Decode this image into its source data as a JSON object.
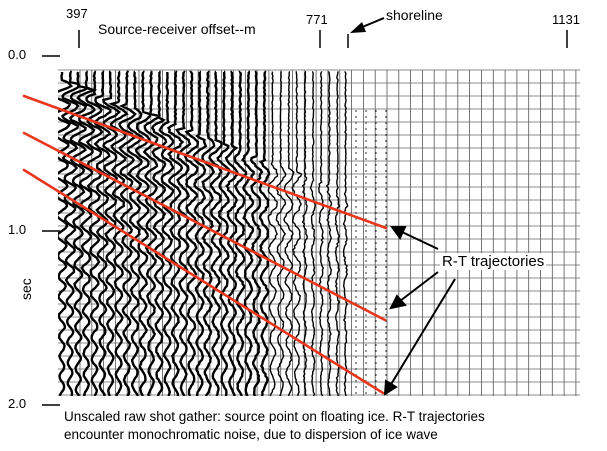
{
  "figure": {
    "x_axis_label": "Source-receiver offset--m",
    "y_axis_label": "sec",
    "x_ticks": [
      "397",
      "771",
      "1131"
    ],
    "y_ticks": [
      "0.0",
      "1.0",
      "2.0"
    ],
    "shoreline_label": "shoreline",
    "annotation_label": "R-T trajectories",
    "caption_line1": "Unscaled raw shot gather: source point on floating ice. R-T trajectories",
    "caption_line2": "encounter monochromatic noise, due to dispersion of ice wave",
    "trajectory_color": "#e8361c"
  },
  "chart_data": {
    "type": "scatter",
    "title": "",
    "xlabel": "Source-receiver offset--m",
    "ylabel": "sec",
    "x_ticks": [
      397,
      771,
      1131
    ],
    "y_ticks": [
      0.0,
      1.0,
      2.0
    ],
    "y_inverted": true,
    "annotations": [
      "shoreline",
      "R-T trajectories"
    ],
    "series": [
      {
        "x": [
          397,
          1131
        ],
        "y": [
          0.0,
          0.0
        ]
      }
    ]
  }
}
